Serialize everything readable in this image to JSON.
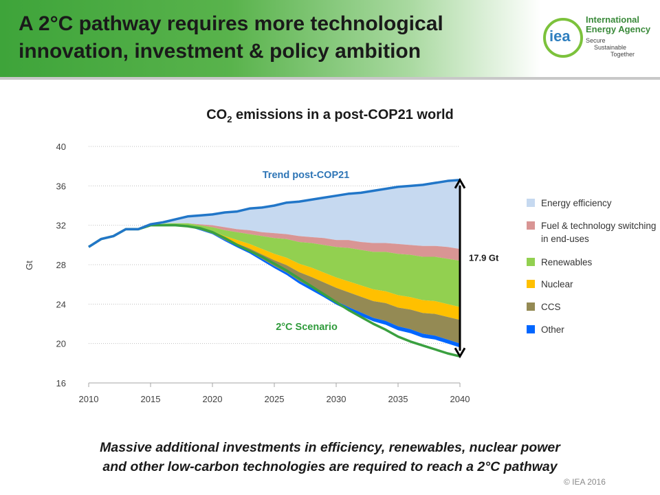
{
  "slide": {
    "title_line1": "A 2°C pathway requires more technological",
    "title_line2": "innovation, investment & policy ambition",
    "caption_line1": "Massive additional investments in efficiency, renewables, nuclear power",
    "caption_line2": "and other low-carbon technologies are required to reach a 2°C pathway",
    "copyright": "© IEA 2016"
  },
  "logo": {
    "mark": "iea",
    "name_line1": "International",
    "name_line2": "Energy Agency",
    "tag_line1": "Secure",
    "tag_line2": "Sustainable",
    "tag_line3": "Together"
  },
  "chart_data": {
    "type": "area",
    "title_main": "CO",
    "title_sub": "2",
    "title_rest": " emissions in a post-COP21 world",
    "ylabel": "Gt",
    "xlabel": "",
    "xlim": [
      2010,
      2040
    ],
    "ylim": [
      16,
      40
    ],
    "x_ticks": [
      2010,
      2015,
      2020,
      2025,
      2030,
      2035,
      2040
    ],
    "y_ticks": [
      16,
      20,
      24,
      28,
      32,
      36,
      40
    ],
    "grid": "horizontal dotted",
    "legend_position": "right",
    "annotations": {
      "trend_label": "Trend post-COP21",
      "scenario_label": "2°C Scenario",
      "gap_label": "17.9 Gt"
    },
    "years": [
      2010,
      2011,
      2012,
      2013,
      2014,
      2015,
      2016,
      2017,
      2018,
      2019,
      2020,
      2021,
      2022,
      2023,
      2024,
      2025,
      2026,
      2027,
      2028,
      2029,
      2030,
      2031,
      2032,
      2033,
      2034,
      2035,
      2036,
      2037,
      2038,
      2039,
      2040
    ],
    "trend_line": {
      "name": "Trend post-COP21",
      "color": "#2176c8",
      "values": [
        29.8,
        30.6,
        30.9,
        31.6,
        31.6,
        32.1,
        32.3,
        32.6,
        32.9,
        33.0,
        33.1,
        33.3,
        33.4,
        33.7,
        33.8,
        34.0,
        34.3,
        34.4,
        34.6,
        34.8,
        35.0,
        35.2,
        35.3,
        35.5,
        35.7,
        35.9,
        36.0,
        36.1,
        36.3,
        36.5,
        36.6
      ]
    },
    "scenario_line": {
      "name": "2°C Scenario",
      "color": "#3aa040",
      "values": [
        29.8,
        30.6,
        30.9,
        31.6,
        31.6,
        32.0,
        32.0,
        32.0,
        31.9,
        31.7,
        31.3,
        30.7,
        30.0,
        29.4,
        28.8,
        28.1,
        27.4,
        26.6,
        25.8,
        25.0,
        24.2,
        23.4,
        22.7,
        22.0,
        21.4,
        20.7,
        20.2,
        19.8,
        19.4,
        19.0,
        18.7
      ]
    },
    "series": [
      {
        "name": "Energy efficiency",
        "color": "#c6d9f0",
        "values": [
          0,
          0,
          0,
          0,
          0,
          0,
          0.1,
          0.4,
          0.7,
          0.9,
          1.1,
          1.5,
          1.8,
          2.2,
          2.5,
          2.8,
          3.2,
          3.5,
          3.8,
          4.1,
          4.5,
          4.7,
          5.0,
          5.3,
          5.5,
          5.8,
          6.0,
          6.2,
          6.4,
          6.7,
          7.0
        ]
      },
      {
        "name": "Fuel & technology switching in end-uses",
        "color": "#d99594",
        "values": [
          0,
          0,
          0,
          0,
          0,
          0,
          0,
          0,
          0,
          0.1,
          0.2,
          0.3,
          0.3,
          0.4,
          0.4,
          0.5,
          0.5,
          0.6,
          0.6,
          0.7,
          0.7,
          0.8,
          0.8,
          0.9,
          0.9,
          1.0,
          1.0,
          1.1,
          1.1,
          1.2,
          1.2
        ]
      },
      {
        "name": "Renewables",
        "color": "#92d050",
        "values": [
          0,
          0,
          0,
          0,
          0,
          0,
          0.05,
          0.1,
          0.2,
          0.3,
          0.4,
          0.6,
          0.8,
          1.0,
          1.3,
          1.6,
          1.9,
          2.2,
          2.5,
          2.8,
          3.1,
          3.4,
          3.6,
          3.8,
          4.0,
          4.2,
          4.3,
          4.4,
          4.5,
          4.6,
          4.7
        ]
      },
      {
        "name": "Nuclear",
        "color": "#ffc000",
        "values": [
          0,
          0,
          0,
          0,
          0,
          0,
          0,
          0,
          0.05,
          0.1,
          0.15,
          0.25,
          0.35,
          0.45,
          0.55,
          0.65,
          0.75,
          0.85,
          0.95,
          1.0,
          1.05,
          1.1,
          1.15,
          1.2,
          1.2,
          1.25,
          1.25,
          1.3,
          1.3,
          1.3,
          1.3
        ]
      },
      {
        "name": "CCS",
        "color": "#948a54",
        "values": [
          0,
          0,
          0,
          0,
          0,
          0,
          0,
          0,
          0,
          0.05,
          0.1,
          0.15,
          0.25,
          0.35,
          0.45,
          0.6,
          0.75,
          0.9,
          1.05,
          1.2,
          1.35,
          1.5,
          1.6,
          1.7,
          1.8,
          1.9,
          2.0,
          2.1,
          2.2,
          2.3,
          2.4
        ]
      },
      {
        "name": "Other",
        "color": "#0066ff",
        "values": [
          0,
          0,
          0,
          0,
          0,
          0,
          0,
          0,
          0.05,
          0.05,
          0.05,
          0.1,
          0.15,
          0.15,
          0.2,
          0.2,
          0.25,
          0.25,
          0.3,
          0.3,
          0.35,
          0.35,
          0.35,
          0.35,
          0.4,
          0.4,
          0.4,
          0.4,
          0.4,
          0.4,
          0.4
        ]
      }
    ]
  }
}
